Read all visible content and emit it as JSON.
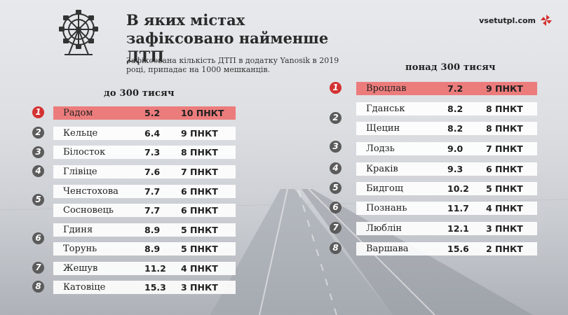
{
  "header": {
    "title": "В яких містах зафіксовано найменше ДТП",
    "subtitle": "Зафіксована кількість ДТП в додатку Yanosik в 2019 році, припадає на 1000 мешканців.",
    "brand": "vsetutpl.com"
  },
  "left": {
    "heading": "до 300 тисяч",
    "ranks": [
      "1",
      "2",
      "3",
      "4",
      "5",
      "6",
      "7",
      "8"
    ],
    "rows": [
      {
        "city": "Радом",
        "value": "5.2",
        "points": "10 ПНКТ"
      },
      {
        "city": "Кельце",
        "value": "6.4",
        "points": "9 ПНКТ"
      },
      {
        "city": "Білосток",
        "value": "7.3",
        "points": "8 ПНКТ"
      },
      {
        "city": "Глівіце",
        "value": "7.6",
        "points": "7 ПНКТ"
      },
      {
        "city": "Ченстохова",
        "value": "7.7",
        "points": "6 ПНКТ"
      },
      {
        "city": "Сосновець",
        "value": "7.7",
        "points": "6 ПНКТ"
      },
      {
        "city": "Гдиня",
        "value": "8.9",
        "points": "5 ПНКТ"
      },
      {
        "city": "Торунь",
        "value": "8.9",
        "points": "5 ПНКТ"
      },
      {
        "city": "Жешув",
        "value": "11.2",
        "points": "4 ПНКТ"
      },
      {
        "city": "Катовіце",
        "value": "15.3",
        "points": "3 ПНКТ"
      }
    ]
  },
  "right": {
    "heading": "понад 300 тисяч",
    "ranks": [
      "1",
      "2",
      "3",
      "4",
      "5",
      "6",
      "7",
      "8"
    ],
    "rows": [
      {
        "city": "Вроцлав",
        "value": "7.2",
        "points": "9 ПНКТ"
      },
      {
        "city": "Гданськ",
        "value": "8.2",
        "points": "8 ПНКТ"
      },
      {
        "city": "Щецин",
        "value": "8.2",
        "points": "8 ПНКТ"
      },
      {
        "city": "Лодзь",
        "value": "9.0",
        "points": "7 ПНКТ"
      },
      {
        "city": "Краків",
        "value": "9.3",
        "points": "6 ПНКТ"
      },
      {
        "city": "Бидгощ",
        "value": "10.2",
        "points": "5 ПНКТ"
      },
      {
        "city": "Познань",
        "value": "11.7",
        "points": "4 ПНКТ"
      },
      {
        "city": "Люблін",
        "value": "12.1",
        "points": "3 ПНКТ"
      },
      {
        "city": "Варшава",
        "value": "15.6",
        "points": "2 ПНКТ"
      }
    ]
  },
  "colors": {
    "highlight": "#ec7c7c",
    "accent": "#d43232",
    "badge": "#5b5b5b"
  },
  "icons": {
    "logo": "ferris-wheel-icon",
    "brand": "pinwheel-icon"
  }
}
